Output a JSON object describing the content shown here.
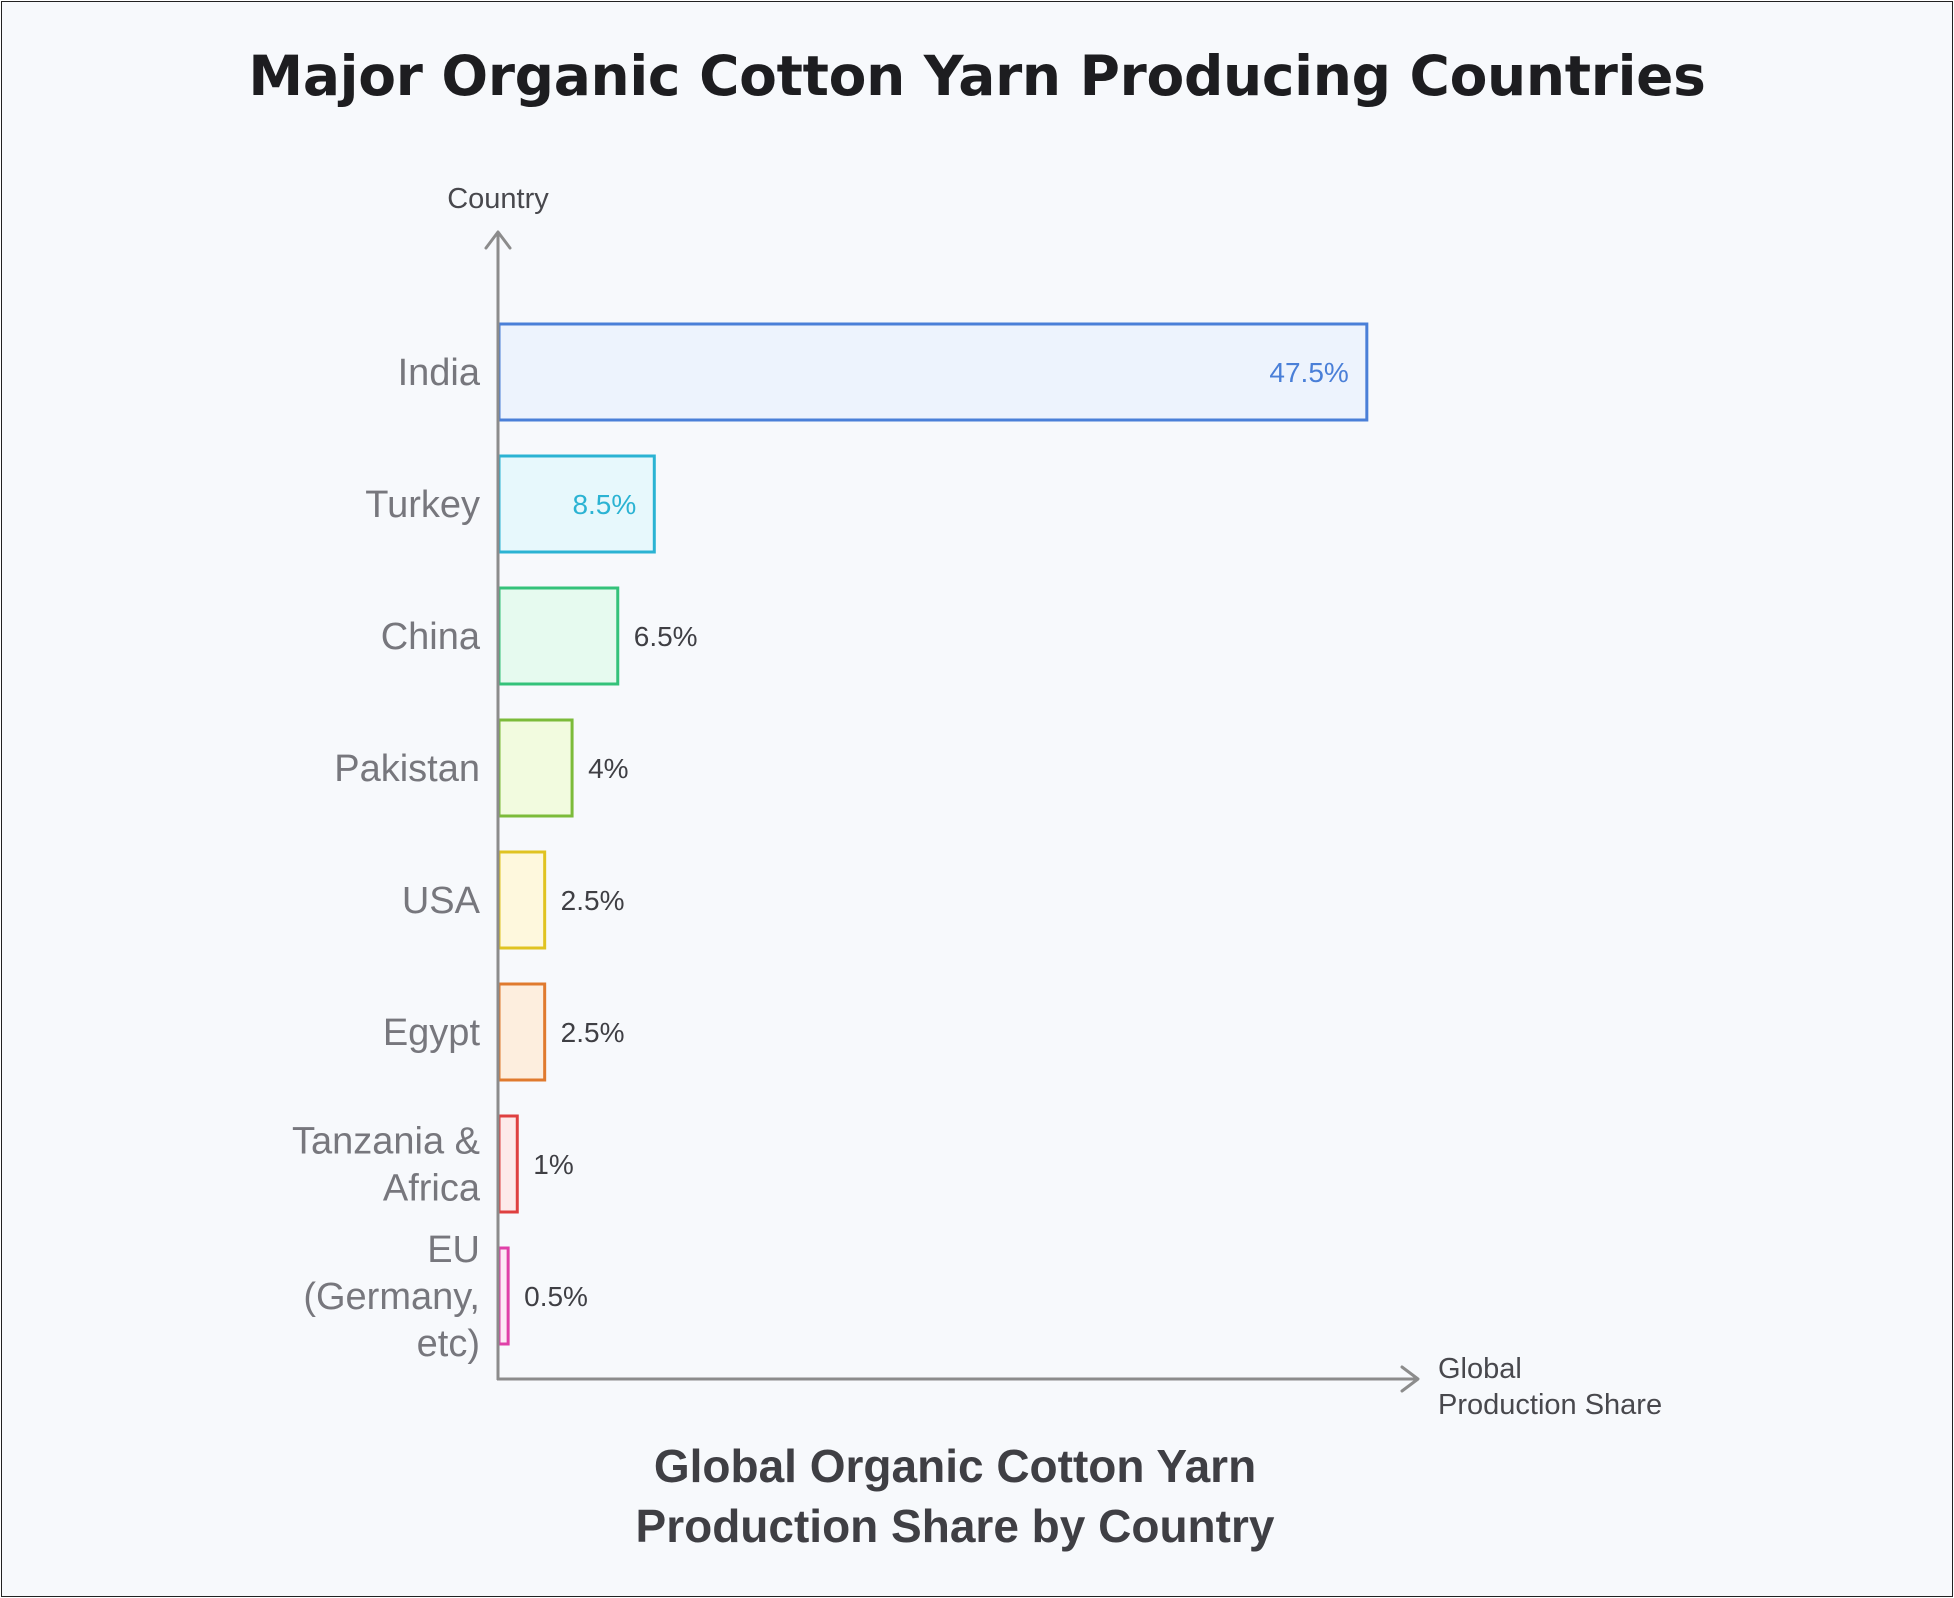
{
  "chart_data": {
    "type": "bar",
    "orientation": "horizontal",
    "title": "Major Organic Cotton Yarn Producing Countries",
    "subtitle": "Global Organic Cotton Yarn Production Share by Country",
    "ylabel": "Country",
    "xlabel": "Global Production Share",
    "unit": "%",
    "grid": false,
    "legend": "none",
    "categories": [
      "India",
      "Turkey",
      "China",
      "Pakistan",
      "USA",
      "Egypt",
      "Tanzania & Africa",
      "EU (Germany, etc)"
    ],
    "values": [
      47.5,
      8.5,
      6.5,
      4,
      2.5,
      2.5,
      1,
      0.5
    ],
    "value_labels": [
      "47.5%",
      "8.5%",
      "6.5%",
      "4%",
      "2.5%",
      "2.5%",
      "1%",
      "0.5%"
    ],
    "colors": {
      "stroke": [
        "#4a7fd8",
        "#2bb3d3",
        "#34c27a",
        "#7cbb3a",
        "#e0c321",
        "#e07a2e",
        "#df4040",
        "#e040a8"
      ],
      "fill": [
        "#edf3fd",
        "#e7f8fc",
        "#e6faef",
        "#f2fbdf",
        "#fef8dd",
        "#fdeede",
        "#fdeaea",
        "#fde9f5"
      ],
      "label_inside": [
        "#4a7fd8",
        "#2bb3d3"
      ],
      "label_outside": "#3f3f44",
      "axis": "#8c8c8c",
      "category_text": "#77777d"
    }
  }
}
